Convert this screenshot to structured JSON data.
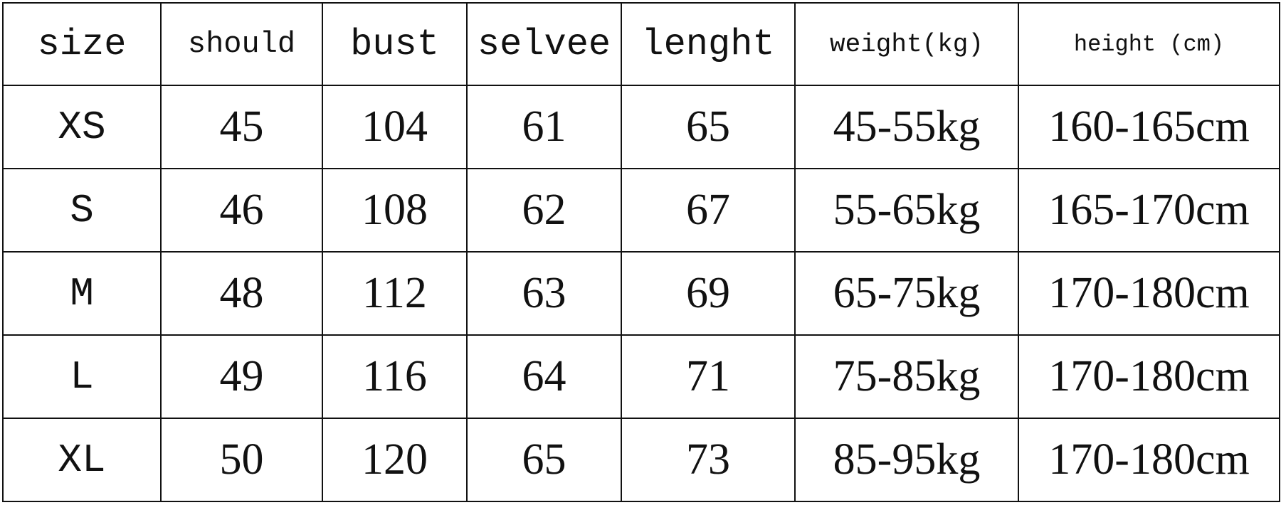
{
  "headers": [
    "size",
    "should",
    "bust",
    "selvee",
    "lenght",
    "weight(kg)",
    "height (cm)"
  ],
  "rows": [
    [
      "XS",
      "45",
      "104",
      "61",
      "65",
      "45-55kg",
      "160-165cm"
    ],
    [
      "S",
      "46",
      "108",
      "62",
      "67",
      "55-65kg",
      "165-170cm"
    ],
    [
      "M",
      "48",
      "112",
      "63",
      "69",
      "65-75kg",
      "170-180cm"
    ],
    [
      "L",
      "49",
      "116",
      "64",
      "71",
      "75-85kg",
      "170-180cm"
    ],
    [
      "XL",
      "50",
      "120",
      "65",
      "73",
      "85-95kg",
      "170-180cm"
    ]
  ]
}
